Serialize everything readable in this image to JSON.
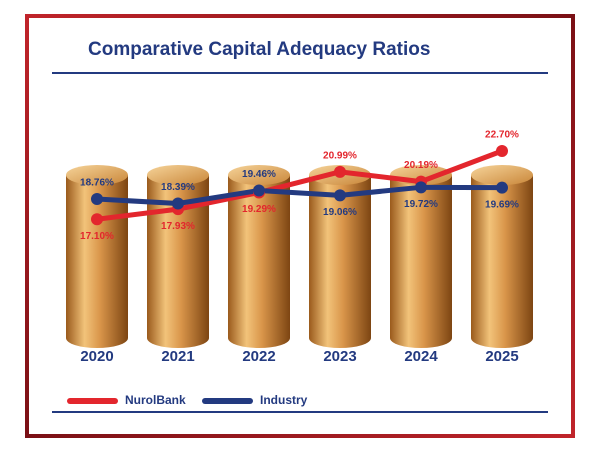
{
  "chart_data": {
    "type": "line",
    "title": "Comparative Capital Adequacy Ratios",
    "categories": [
      "2020",
      "2021",
      "2022",
      "2023",
      "2024",
      "2025"
    ],
    "ylim": [
      14,
      25
    ],
    "series": [
      {
        "name": "NurolBank",
        "color": "#e3262d",
        "values": [
          17.1,
          17.93,
          19.29,
          20.99,
          20.19,
          22.7
        ],
        "value_labels": [
          "17.10%",
          "17.93%",
          "19.29%",
          "20.99%",
          "20.19%",
          "22.70%"
        ]
      },
      {
        "name": "Industry",
        "color": "#233a80",
        "values": [
          18.76,
          18.39,
          19.46,
          19.06,
          19.72,
          19.69
        ],
        "value_labels": [
          "18.76%",
          "18.39%",
          "19.46%",
          "19.06%",
          "19.72%",
          "19.69%"
        ]
      }
    ]
  }
}
